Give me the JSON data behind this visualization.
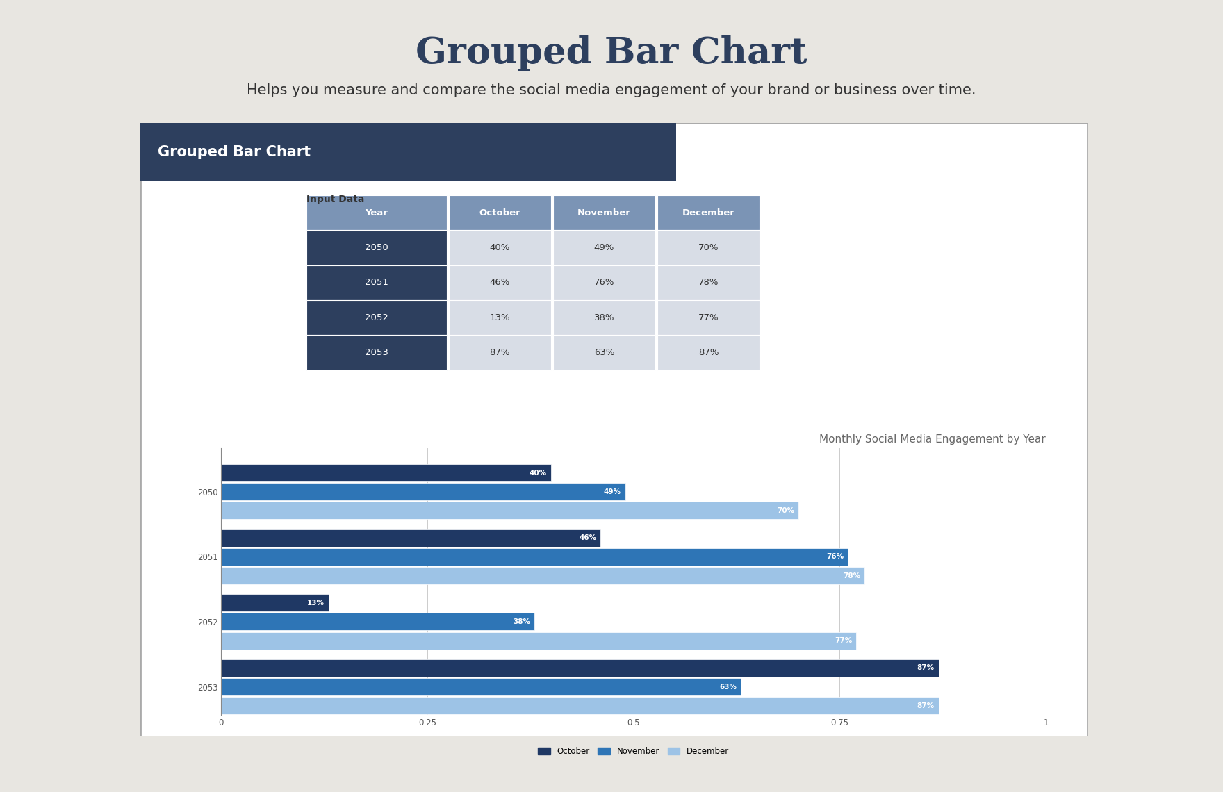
{
  "title": "Grouped Bar Chart",
  "subtitle": "Helps you measure and compare the social media engagement of your brand or business over time.",
  "background_color": "#e8e6e1",
  "card_header_color": "#2d3f5e",
  "card_header_text": "Grouped Bar Chart",
  "card_header_text_color": "#ffffff",
  "table_header_bg": "#7b94b5",
  "table_header_text_color": "#ffffff",
  "table_row_bg_dark": "#2d3f5e",
  "table_row_bg_light": "#d8dde6",
  "table_text_color_dark": "#ffffff",
  "table_label": "Input Data",
  "years": [
    2050,
    2051,
    2052,
    2053
  ],
  "months": [
    "October",
    "November",
    "December"
  ],
  "data": {
    "2050": {
      "October": 0.4,
      "November": 0.49,
      "December": 0.7
    },
    "2051": {
      "October": 0.46,
      "November": 0.76,
      "December": 0.78
    },
    "2052": {
      "October": 0.13,
      "November": 0.38,
      "December": 0.77
    },
    "2053": {
      "October": 0.87,
      "November": 0.63,
      "December": 0.87
    }
  },
  "bar_colors": {
    "October": "#1f3864",
    "November": "#2e75b6",
    "December": "#9dc3e6"
  },
  "chart_title": "Monthly Social Media Engagement by Year",
  "chart_bg": "#ffffff",
  "title_fontsize": 38,
  "subtitle_fontsize": 15,
  "chart_title_fontsize": 11
}
